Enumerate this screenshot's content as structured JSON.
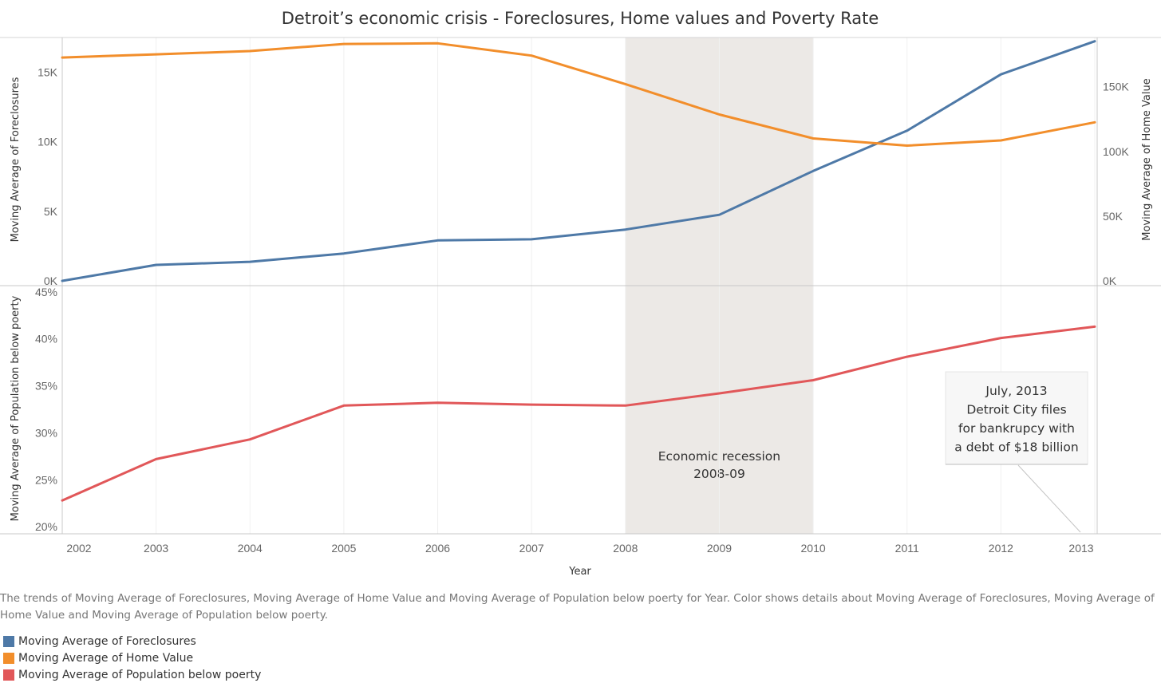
{
  "chart_data": {
    "type": "line",
    "title": "Detroit’s economic crisis - Foreclosures, Home values and Poverty Rate",
    "xlabel": "Year",
    "categories": [
      "2002",
      "2003",
      "2004",
      "2005",
      "2006",
      "2007",
      "2008",
      "2009",
      "2010",
      "2011",
      "2012",
      "2013"
    ],
    "panels": [
      {
        "ylabel_left": "Moving Average of Foreclosures",
        "ylabel_right": "Moving Average of Home Value",
        "left_ticks": [
          "0K",
          "5K",
          "10K",
          "15K"
        ],
        "right_ticks": [
          "0K",
          "50K",
          "100K",
          "150K"
        ],
        "left_ylim": [
          0,
          17500
        ],
        "right_ylim": [
          0,
          188000
        ],
        "series": [
          {
            "name": "Moving Average of Foreclosures",
            "axis": "left",
            "color": "#4e79a7",
            "values": [
              0,
              1150,
              1370,
              1970,
              2910,
              2990,
              3690,
              4750,
              7900,
              10800,
              14850,
              17230
            ]
          },
          {
            "name": "Moving Average of Home Value",
            "axis": "right",
            "color": "#f28e2b",
            "values": [
              172500,
              175000,
              177500,
              183000,
              183500,
              174000,
              152000,
              128500,
              110000,
              104500,
              108500,
              122500
            ]
          }
        ]
      },
      {
        "ylabel_left": "Moving Average of Population below poerty",
        "left_ticks": [
          "20%",
          "25%",
          "30%",
          "35%",
          "40%",
          "45%"
        ],
        "left_ylim": [
          19.5,
          45.5
        ],
        "series": [
          {
            "name": "Moving Average of Population below poerty",
            "axis": "left",
            "color": "#e15759",
            "values": [
              22.8,
              27.2,
              29.3,
              32.9,
              33.2,
              33.0,
              32.9,
              34.2,
              35.6,
              38.1,
              40.1,
              41.3
            ]
          }
        ]
      }
    ],
    "recession_band": {
      "from": "2008",
      "to": "2010",
      "label_line1": "Economic recession",
      "label_line2": "2008-09"
    },
    "annotation": {
      "lines": [
        "July, 2013",
        "Detroit City files",
        "for bankrupcy with",
        "a debt of $18 billion"
      ]
    }
  },
  "caption": "The trends of Moving Average of Foreclosures, Moving Average of Home Value  and Moving Average of Population below poerty for Year.  Color shows details about Moving Average of Foreclosures, Moving Average of Home Value  and Moving Average of Population below poerty.",
  "legend": {
    "items": [
      {
        "label": "Moving Average of Foreclosures",
        "color": "#4e79a7"
      },
      {
        "label": "Moving Average of Home Value",
        "color": "#f28e2b"
      },
      {
        "label": "Moving Average of Population below poerty",
        "color": "#e15759"
      }
    ]
  }
}
